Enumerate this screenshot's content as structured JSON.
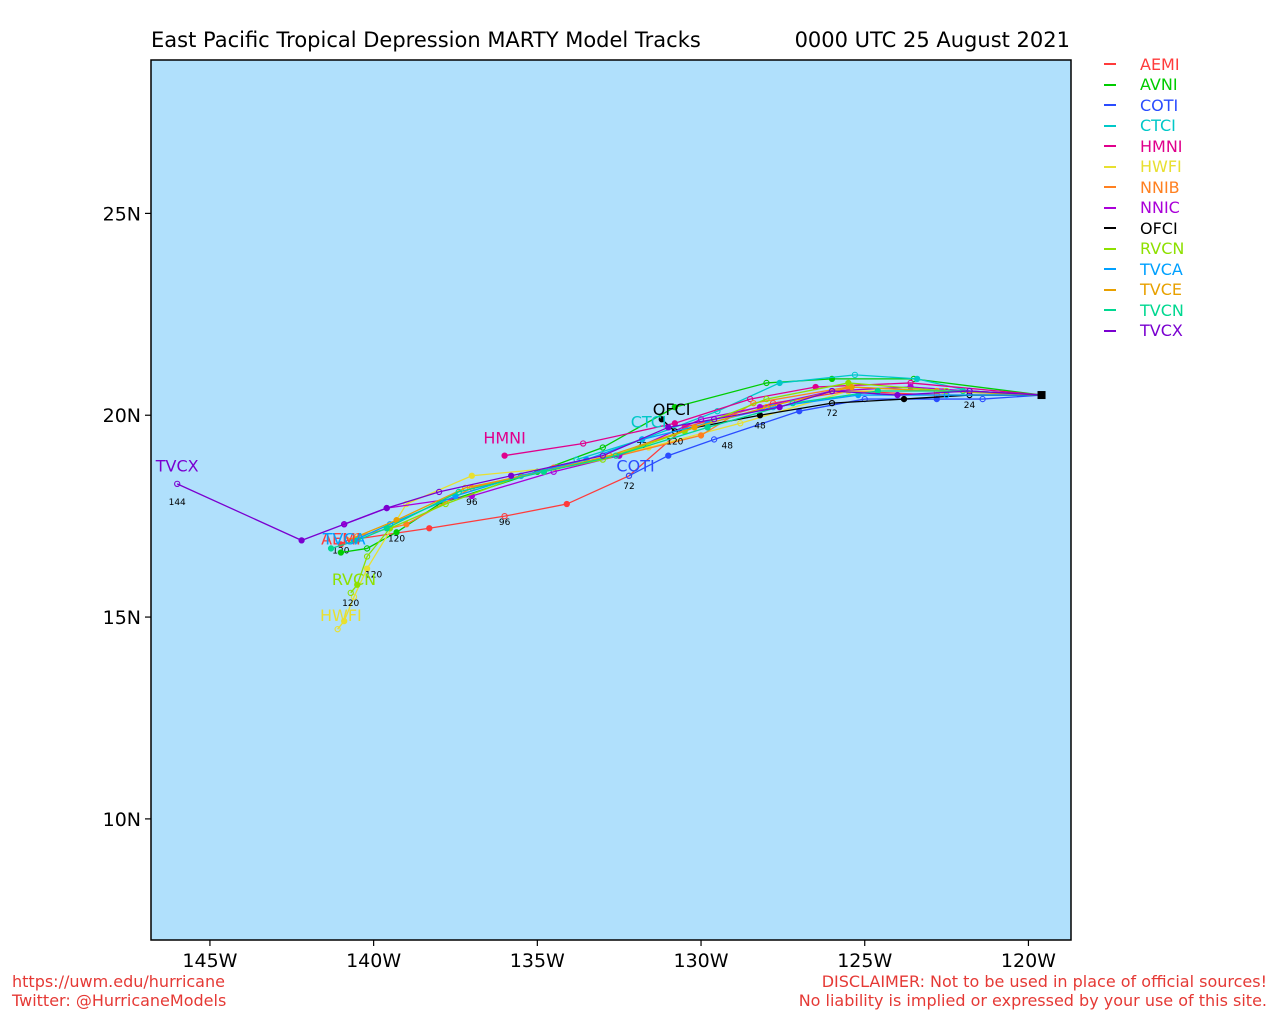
{
  "page": {
    "title_left": "East Pacific Tropical Depression MARTY Model Tracks",
    "title_right": "0000 UTC 25 August 2021",
    "footer_left": [
      "https://uwm.edu/hurricane",
      "Twitter: @HurricaneModels"
    ],
    "footer_right": [
      "DISCLAIMER: Not to be used in place of official sources!",
      "No liability is implied or expressed by your use of this site."
    ],
    "footer_color": "#e53935"
  },
  "chart_data": {
    "type": "line",
    "x_ticks": [
      {
        "value": -145,
        "label": "145W"
      },
      {
        "value": -140,
        "label": "140W"
      },
      {
        "value": -135,
        "label": "135W"
      },
      {
        "value": -130,
        "label": "130W"
      },
      {
        "value": -125,
        "label": "125W"
      },
      {
        "value": -120,
        "label": "120W"
      }
    ],
    "y_ticks": [
      {
        "value": 10,
        "label": "10N"
      },
      {
        "value": 15,
        "label": "15N"
      },
      {
        "value": 20,
        "label": "20N"
      },
      {
        "value": 25,
        "label": "25N"
      }
    ],
    "xlim": [
      -146.8,
      -118.7
    ],
    "ylim": [
      7.0,
      28.8
    ],
    "ocean_color": "#b0e0fc",
    "start": {
      "lon": -119.6,
      "lat": 20.5
    },
    "series": [
      {
        "name": "AEMI",
        "color": "#ff3b3b",
        "points": [
          [
            -119.6,
            20.5
          ],
          [
            -122.8,
            20.5
          ],
          [
            -125.5,
            20.6
          ],
          [
            -127.8,
            20.3
          ],
          [
            -130.5,
            19.7
          ],
          [
            -132.2,
            18.5
          ],
          [
            -134.1,
            17.8
          ],
          [
            -136.0,
            17.5
          ],
          [
            -138.3,
            17.2
          ],
          [
            -140.8,
            16.9
          ],
          [
            -141.0,
            16.8
          ]
        ],
        "labels": [
          {
            "lon": -136.0,
            "lat": 17.5,
            "text": "96"
          },
          {
            "lon": -141.0,
            "lat": 16.8,
            "text": "120"
          }
        ],
        "end_label": "AEMI",
        "end_pos": [
          -141.0,
          16.8
        ]
      },
      {
        "name": "AVNI",
        "color": "#00cc00",
        "points": [
          [
            -119.6,
            20.5
          ],
          [
            -123.5,
            20.9
          ],
          [
            -126.0,
            20.9
          ],
          [
            -128.0,
            20.8
          ],
          [
            -130.8,
            20.2
          ],
          [
            -133.0,
            19.2
          ],
          [
            -135.0,
            18.6
          ],
          [
            -138.0,
            17.8
          ],
          [
            -139.3,
            17.1
          ],
          [
            -140.2,
            16.7
          ],
          [
            -141.0,
            16.6
          ]
        ],
        "labels": [
          {
            "lon": -139.3,
            "lat": 17.1,
            "text": "120"
          }
        ],
        "end_label": "",
        "end_pos": null
      },
      {
        "name": "COTI",
        "color": "#2a4cff",
        "points": [
          [
            -119.6,
            20.5
          ],
          [
            -121.4,
            20.4
          ],
          [
            -122.8,
            20.4
          ],
          [
            -125.0,
            20.4
          ],
          [
            -127.0,
            20.1
          ],
          [
            -129.6,
            19.4
          ],
          [
            -131.0,
            19.0
          ],
          [
            -132.2,
            18.5
          ]
        ],
        "labels": [
          {
            "lon": -132.2,
            "lat": 18.4,
            "text": "72"
          },
          {
            "lon": -129.2,
            "lat": 19.4,
            "text": "48"
          }
        ],
        "end_label": "COTI",
        "end_pos": [
          -132.0,
          18.6
        ]
      },
      {
        "name": "CTCI",
        "color": "#00c8c8",
        "points": [
          [
            -119.6,
            20.5
          ],
          [
            -121.8,
            20.6
          ],
          [
            -123.4,
            20.9
          ],
          [
            -125.3,
            21.0
          ],
          [
            -127.6,
            20.8
          ],
          [
            -129.5,
            20.1
          ],
          [
            -131.8,
            19.4
          ],
          [
            -133.8,
            18.9
          ]
        ],
        "labels": [
          {
            "lon": -131.8,
            "lat": 19.4,
            "text": "72"
          }
        ],
        "end_label": "CTCI",
        "end_pos": [
          -131.6,
          19.7
        ]
      },
      {
        "name": "HMNI",
        "color": "#e0008c",
        "points": [
          [
            -119.6,
            20.5
          ],
          [
            -123.6,
            20.8
          ],
          [
            -126.5,
            20.7
          ],
          [
            -128.5,
            20.4
          ],
          [
            -130.8,
            19.8
          ],
          [
            -133.6,
            19.3
          ],
          [
            -136.0,
            19.0
          ]
        ],
        "labels": [],
        "end_label": "HMNI",
        "end_pos": [
          -136.0,
          19.3
        ]
      },
      {
        "name": "HWFI",
        "color": "#e8e030",
        "points": [
          [
            -119.6,
            20.5
          ],
          [
            -122.6,
            20.6
          ],
          [
            -125.5,
            20.6
          ],
          [
            -128.8,
            19.8
          ],
          [
            -131.6,
            19.2
          ],
          [
            -134.4,
            18.7
          ],
          [
            -137.0,
            18.5
          ],
          [
            -139.0,
            17.8
          ],
          [
            -140.2,
            16.2
          ],
          [
            -140.6,
            15.5
          ],
          [
            -140.9,
            14.9
          ],
          [
            -141.1,
            14.7
          ]
        ],
        "labels": [],
        "end_label": "HWFI",
        "end_pos": [
          -141.0,
          14.9
        ]
      },
      {
        "name": "NNIB",
        "color": "#ff8020",
        "points": [
          [
            -119.6,
            20.5
          ],
          [
            -122.8,
            20.6
          ],
          [
            -125.5,
            20.7
          ],
          [
            -128.4,
            20.3
          ],
          [
            -130.0,
            19.5
          ],
          [
            -132.5,
            19.0
          ],
          [
            -134.5,
            18.7
          ],
          [
            -137.0,
            18.2
          ],
          [
            -139.0,
            17.3
          ],
          [
            -140.5,
            17.0
          ]
        ],
        "labels": [],
        "end_label": "",
        "end_pos": null
      },
      {
        "name": "NNIC",
        "color": "#aa00d8",
        "points": [
          [
            -119.6,
            20.5
          ],
          [
            -121.8,
            20.6
          ],
          [
            -123.6,
            20.7
          ],
          [
            -126.0,
            20.6
          ],
          [
            -128.2,
            20.2
          ],
          [
            -130.0,
            19.9
          ],
          [
            -132.5,
            19.0
          ],
          [
            -134.5,
            18.6
          ],
          [
            -137.0,
            18.0
          ],
          [
            -139.6,
            17.7
          ],
          [
            -140.9,
            17.3
          ]
        ],
        "labels": [],
        "end_label": "",
        "end_pos": null
      },
      {
        "name": "OFCI",
        "color": "#000000",
        "points": [
          [
            -119.6,
            20.5
          ],
          [
            -121.8,
            20.5
          ],
          [
            -123.8,
            20.4
          ],
          [
            -126.0,
            20.3
          ],
          [
            -128.2,
            20.0
          ],
          [
            -130.8,
            19.6
          ],
          [
            -131.2,
            19.9
          ]
        ],
        "labels": [
          {
            "lon": -121.8,
            "lat": 20.4,
            "text": "24"
          },
          {
            "lon": -126.0,
            "lat": 20.2,
            "text": "72"
          },
          {
            "lon": -128.2,
            "lat": 19.9,
            "text": "48"
          },
          {
            "lon": -130.8,
            "lat": 19.5,
            "text": "120"
          }
        ],
        "end_label": "OFCI",
        "end_pos": [
          -130.9,
          20.0
        ]
      },
      {
        "name": "RVCN",
        "color": "#8ee000",
        "points": [
          [
            -119.6,
            20.5
          ],
          [
            -122.5,
            20.6
          ],
          [
            -125.5,
            20.8
          ],
          [
            -128.0,
            20.4
          ],
          [
            -130.5,
            19.6
          ],
          [
            -133.0,
            18.9
          ],
          [
            -135.5,
            18.5
          ],
          [
            -137.8,
            17.8
          ],
          [
            -139.5,
            17.2
          ],
          [
            -140.2,
            16.5
          ],
          [
            -140.5,
            15.8
          ],
          [
            -140.7,
            15.6
          ]
        ],
        "labels": [
          {
            "lon": -140.0,
            "lat": 16.2,
            "text": "120"
          },
          {
            "lon": -140.7,
            "lat": 15.5,
            "text": "120"
          }
        ],
        "end_label": "RVCN",
        "end_pos": [
          -140.6,
          15.8
        ]
      },
      {
        "name": "TVCA",
        "color": "#00a0ff",
        "points": [
          [
            -119.6,
            20.5
          ],
          [
            -122.5,
            20.5
          ],
          [
            -125.2,
            20.5
          ],
          [
            -127.8,
            20.2
          ],
          [
            -129.8,
            19.8
          ],
          [
            -131.8,
            19.4
          ],
          [
            -133.5,
            18.9
          ],
          [
            -135.5,
            18.5
          ],
          [
            -137.5,
            18.0
          ],
          [
            -139.5,
            17.3
          ],
          [
            -140.6,
            16.9
          ]
        ],
        "labels": [],
        "end_label": "TVCA",
        "end_pos": [
          -140.9,
          16.8
        ]
      },
      {
        "name": "TVCE",
        "color": "#e8a000",
        "points": [
          [
            -119.6,
            20.5
          ],
          [
            -122.8,
            20.6
          ],
          [
            -125.4,
            20.7
          ],
          [
            -128.0,
            20.2
          ],
          [
            -130.2,
            19.7
          ],
          [
            -132.8,
            19.0
          ],
          [
            -134.8,
            18.6
          ],
          [
            -137.2,
            18.2
          ],
          [
            -139.3,
            17.4
          ],
          [
            -140.8,
            16.9
          ]
        ],
        "labels": [],
        "end_label": "",
        "end_pos": null
      },
      {
        "name": "TVCN",
        "color": "#00d890",
        "points": [
          [
            -119.6,
            20.5
          ],
          [
            -122.0,
            20.6
          ],
          [
            -124.6,
            20.6
          ],
          [
            -127.2,
            20.3
          ],
          [
            -129.8,
            19.7
          ],
          [
            -132.6,
            19.0
          ],
          [
            -134.8,
            18.6
          ],
          [
            -137.4,
            18.1
          ],
          [
            -139.6,
            17.2
          ],
          [
            -140.5,
            16.9
          ],
          [
            -141.3,
            16.7
          ]
        ],
        "labels": [],
        "end_label": "",
        "end_pos": null
      },
      {
        "name": "TVCX",
        "color": "#7a00d0",
        "points": [
          [
            -119.6,
            20.5
          ],
          [
            -121.8,
            20.6
          ],
          [
            -124.0,
            20.5
          ],
          [
            -126.0,
            20.6
          ],
          [
            -127.6,
            20.2
          ],
          [
            -129.6,
            19.9
          ],
          [
            -131.0,
            19.7
          ],
          [
            -133.0,
            19.0
          ],
          [
            -135.8,
            18.5
          ],
          [
            -138.0,
            18.1
          ],
          [
            -139.6,
            17.7
          ],
          [
            -140.9,
            17.3
          ],
          [
            -142.2,
            16.9
          ],
          [
            -146.0,
            18.3
          ]
        ],
        "labels": [
          {
            "lon": -146.0,
            "lat": 18.0,
            "text": "144"
          },
          {
            "lon": -137.0,
            "lat": 18.0,
            "text": "96"
          }
        ],
        "end_label": "TVCX",
        "end_pos": [
          -146.0,
          18.6
        ]
      }
    ]
  }
}
